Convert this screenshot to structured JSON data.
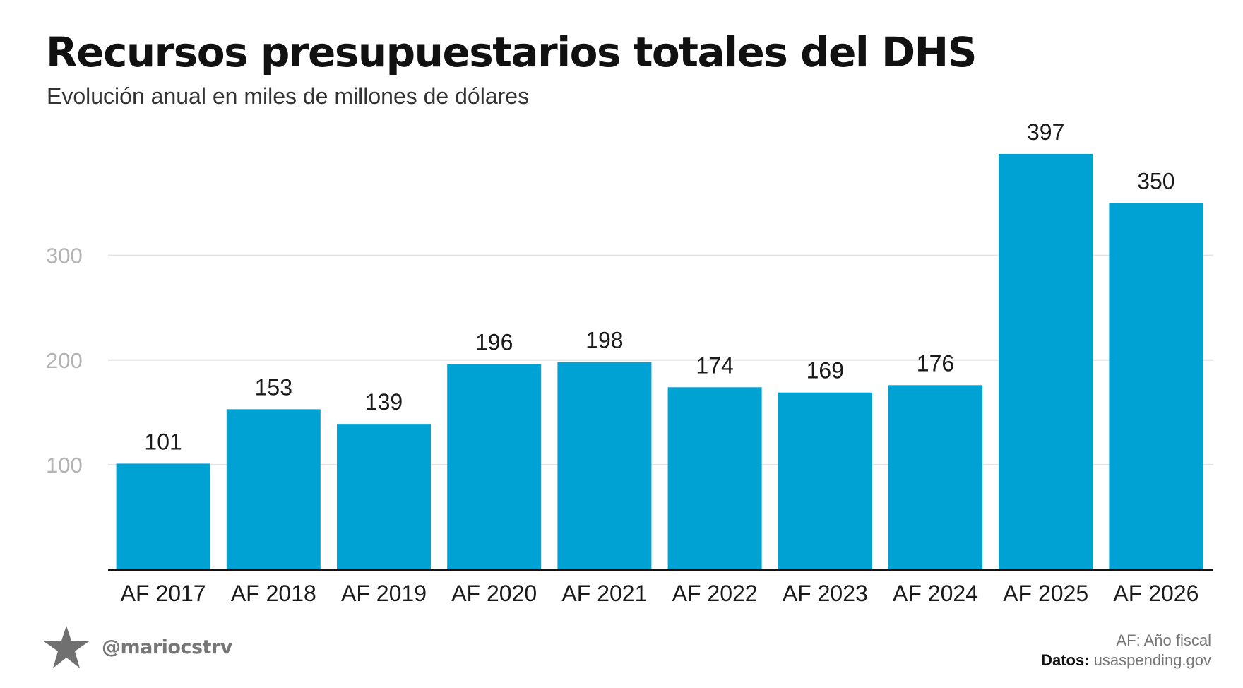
{
  "chart_data": {
    "type": "bar",
    "title": "Recursos presupuestarios totales del DHS",
    "subtitle": "Evolución anual en miles de millones de dólares",
    "categories": [
      "AF 2017",
      "AF 2018",
      "AF 2019",
      "AF 2020",
      "AF 2021",
      "AF 2022",
      "AF 2023",
      "AF 2024",
      "AF 2025",
      "AF 2026"
    ],
    "values": [
      101,
      153,
      139,
      196,
      198,
      174,
      169,
      176,
      397,
      350
    ],
    "yticks": [
      100,
      200,
      300
    ],
    "ylim": [
      0,
      400
    ],
    "xlabel": "",
    "ylabel": "",
    "grid": true,
    "legend": "none",
    "bar_color": "#00A2D3"
  },
  "footer": {
    "handle": "@mariocstrv",
    "note": "AF: Año fiscal",
    "source_label": "Datos:",
    "source": "usaspending.gov"
  },
  "icons": {
    "brand": "star-icon"
  }
}
